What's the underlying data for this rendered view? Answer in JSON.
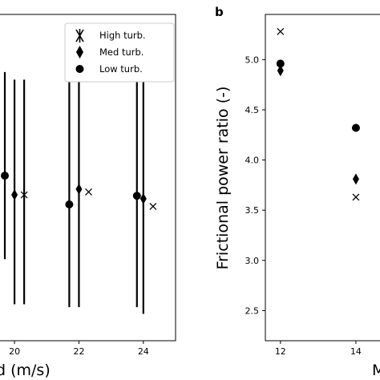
{
  "chart_data": [
    {
      "type": "scatter",
      "panel_label": "",
      "xlabel": "d (m/s)",
      "ylabel": "",
      "x_ticks": [
        "20",
        "22",
        "24"
      ],
      "xlim": [
        19.5,
        25.0
      ],
      "ylim": [
        2.2,
        5.6
      ],
      "legend": {
        "placement": "top-right",
        "entries": [
          "High turb.",
          "Med turb.",
          "Low turb."
        ]
      },
      "series": [
        {
          "name": "High turb.",
          "marker": "x",
          "points": [
            {
              "x": 20.3,
              "y": 3.72,
              "lo": 2.58,
              "hi": 4.92
            },
            {
              "x": 22.3,
              "y": 3.75
            },
            {
              "x": 24.3,
              "y": 3.6
            }
          ]
        },
        {
          "name": "Med turb.",
          "marker": "diamond",
          "points": [
            {
              "x": 20.0,
              "y": 3.72,
              "lo": 2.58,
              "hi": 4.92
            },
            {
              "x": 22.0,
              "y": 3.78,
              "lo": 2.55,
              "hi": 5.45
            },
            {
              "x": 24.0,
              "y": 3.68,
              "lo": 2.48,
              "hi": 5.4
            }
          ]
        },
        {
          "name": "Low turb.",
          "marker": "circle",
          "points": [
            {
              "x": 19.7,
              "y": 3.92,
              "lo": 3.05,
              "hi": 5.0
            },
            {
              "x": 21.7,
              "y": 3.62,
              "lo": 2.55,
              "hi": 5.4
            },
            {
              "x": 23.8,
              "y": 3.71,
              "lo": 2.55,
              "hi": 5.4
            }
          ]
        }
      ]
    },
    {
      "type": "scatter",
      "panel_label": "b",
      "xlabel": "M",
      "ylabel": "Frictional power ratio  (-)",
      "x_ticks": [
        "12",
        "14"
      ],
      "y_ticks": [
        "2.5",
        "3.0",
        "3.5",
        "4.0",
        "4.5",
        "5.0"
      ],
      "xlim": [
        11.6,
        15.0
      ],
      "ylim": [
        2.2,
        5.45
      ],
      "series": [
        {
          "name": "High turb.",
          "marker": "x",
          "points": [
            {
              "x": 12,
              "y": 5.28
            },
            {
              "x": 14,
              "y": 3.63
            }
          ]
        },
        {
          "name": "Med turb.",
          "marker": "diamond",
          "points": [
            {
              "x": 12,
              "y": 4.89
            },
            {
              "x": 14,
              "y": 3.81
            }
          ]
        },
        {
          "name": "Low turb.",
          "marker": "circle",
          "points": [
            {
              "x": 12,
              "y": 4.96
            },
            {
              "x": 14,
              "y": 4.32
            }
          ]
        }
      ]
    }
  ]
}
